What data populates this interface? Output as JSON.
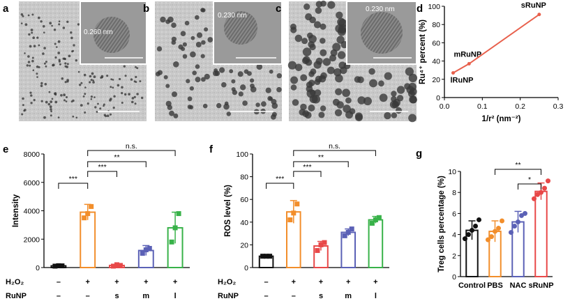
{
  "figure": {
    "panel_labels": [
      "a",
      "b",
      "c",
      "d",
      "e",
      "f",
      "g"
    ],
    "lattice_labels": [
      "0.260 nm",
      "0.230 nm",
      "0.230 nm"
    ],
    "colors": {
      "black": "#111111",
      "orange": "#f28e2b",
      "red": "#e84848",
      "blue": "#5b61b6",
      "green": "#38b249",
      "line": "#e8604c"
    }
  },
  "chart_data": [
    {
      "panel": "d",
      "type": "line",
      "xlabel": "1/r² (nm⁻²)",
      "ylabel": "Ru⁴⁺ percent (%)",
      "xlim": [
        0,
        0.3
      ],
      "ylim": [
        0,
        100
      ],
      "xticks": [
        "0.0",
        "0.1",
        "0.2",
        "0.3"
      ],
      "yticks": [
        "0",
        "20",
        "40",
        "60",
        "80",
        "100"
      ],
      "points": [
        {
          "label": "lRuNP",
          "x": 0.023,
          "y": 27
        },
        {
          "label": "mRuNP",
          "x": 0.065,
          "y": 37
        },
        {
          "label": "sRuNP",
          "x": 0.25,
          "y": 91
        }
      ],
      "grid": false
    },
    {
      "panel": "e",
      "type": "bar",
      "ylabel": "Intensity",
      "ylim": [
        0,
        8000
      ],
      "yticks": [
        "0",
        "2000",
        "4000",
        "6000",
        "8000"
      ],
      "h2o2": [
        "–",
        "+",
        "+",
        "+",
        "+"
      ],
      "runp": [
        "–",
        "–",
        "s",
        "m",
        "l"
      ],
      "row_labels": [
        "H₂O₂",
        "RuNP"
      ],
      "values": [
        120,
        3900,
        150,
        1200,
        2800
      ],
      "errors": [
        60,
        550,
        80,
        350,
        1100
      ],
      "points": [
        [
          100,
          130,
          120
        ],
        [
          3500,
          3800,
          4300
        ],
        [
          100,
          200,
          150
        ],
        [
          1000,
          1250,
          1350
        ],
        [
          1800,
          2800,
          3800
        ]
      ],
      "significance": [
        {
          "from": 0,
          "to": 1,
          "text": "***"
        },
        {
          "from": 1,
          "to": 2,
          "text": "***"
        },
        {
          "from": 1,
          "to": 3,
          "text": "**"
        },
        {
          "from": 1,
          "to": 4,
          "text": "n.s."
        }
      ]
    },
    {
      "panel": "f",
      "type": "bar",
      "ylabel": "ROS level (%)",
      "ylim": [
        0,
        100
      ],
      "yticks": [
        "0",
        "20",
        "40",
        "60",
        "80",
        "100"
      ],
      "h2o2": [
        "–",
        "+",
        "+",
        "+",
        "+"
      ],
      "runp": [
        "–",
        "–",
        "s",
        "m",
        "l"
      ],
      "row_labels": [
        "H₂O₂",
        "RuNP"
      ],
      "values": [
        10,
        49,
        19,
        31,
        42
      ],
      "errors": [
        1,
        10,
        4,
        3,
        3
      ],
      "points": [
        [
          10,
          10,
          10
        ],
        [
          42,
          48,
          56
        ],
        [
          15,
          20,
          22
        ],
        [
          28,
          31,
          34
        ],
        [
          39,
          42,
          44
        ]
      ],
      "significance": [
        {
          "from": 0,
          "to": 1,
          "text": "***"
        },
        {
          "from": 1,
          "to": 2,
          "text": "***"
        },
        {
          "from": 1,
          "to": 3,
          "text": "**"
        },
        {
          "from": 1,
          "to": 4,
          "text": "n.s."
        }
      ]
    },
    {
      "panel": "g",
      "type": "bar",
      "ylabel": "Treg cells percentage  (%)",
      "ylim": [
        0,
        10
      ],
      "yticks": [
        "0",
        "2",
        "4",
        "6",
        "8",
        "10"
      ],
      "categories": [
        "Control",
        "PBS",
        "NAC",
        "sRuNP"
      ],
      "values": [
        4.4,
        4.3,
        5.2,
        8.1
      ],
      "errors": [
        0.9,
        1.0,
        1.0,
        0.8
      ],
      "points": [
        [
          3.6,
          4.0,
          4.4,
          4.8,
          5.4
        ],
        [
          3.5,
          3.8,
          4.3,
          4.6,
          5.3
        ],
        [
          4.2,
          4.8,
          5.2,
          5.8,
          6.0
        ],
        [
          7.4,
          7.8,
          8.0,
          8.4,
          9.1
        ]
      ],
      "significance": [
        {
          "from": 1,
          "to": 3,
          "text": "**"
        },
        {
          "from": 2,
          "to": 3,
          "text": "*"
        }
      ]
    }
  ]
}
